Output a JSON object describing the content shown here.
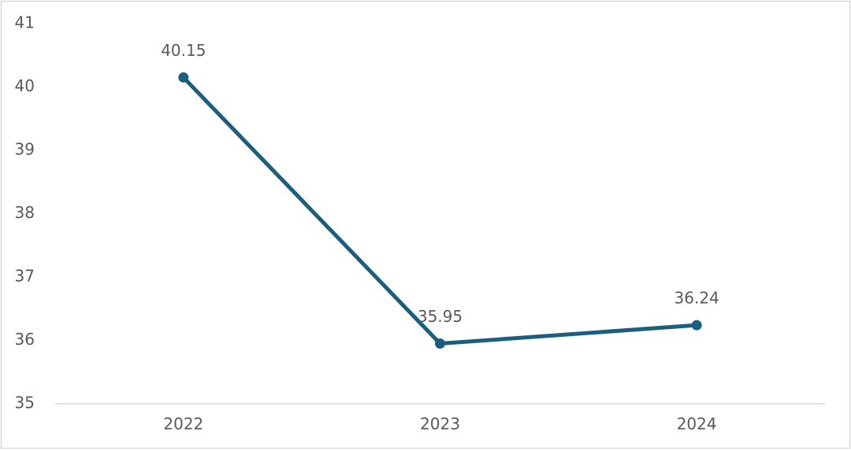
{
  "chart_data": {
    "type": "line",
    "categories": [
      "2022",
      "2023",
      "2024"
    ],
    "values": [
      40.15,
      35.95,
      36.24
    ],
    "color": "#1b5e7e",
    "ylim": [
      35,
      41
    ],
    "yticks": [
      35,
      36,
      37,
      38,
      39,
      40,
      41
    ],
    "grid": false,
    "data_labels": true
  }
}
